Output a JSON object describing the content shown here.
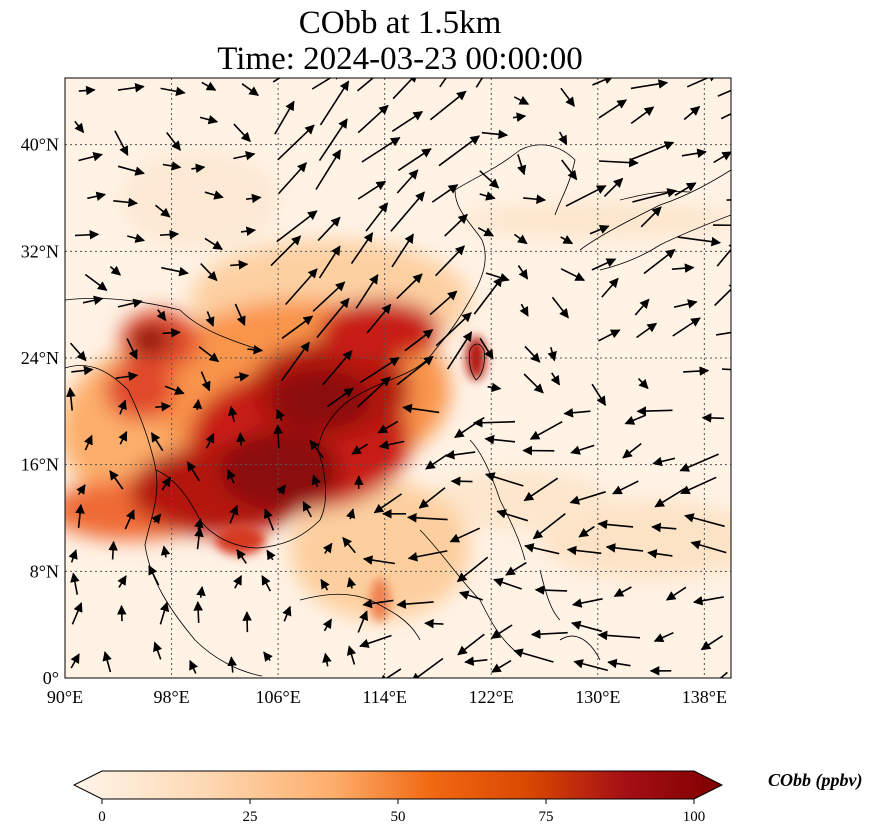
{
  "title_line1": "CObb at 1.5km",
  "title_line2": "Time: 2024-03-23 00:00:00",
  "colorbar_label": "CObb (ppbv)",
  "colorbar_ticks": [
    "0",
    "25",
    "50",
    "75",
    "100"
  ],
  "colorbar_colors": [
    "#fff5eb",
    "#fdd9b4",
    "#fdae6b",
    "#f16913",
    "#d94801",
    "#a50f15",
    "#7f0000"
  ],
  "x_ticks": [
    "90°E",
    "98°E",
    "106°E",
    "114°E",
    "122°E",
    "130°E",
    "138°E"
  ],
  "y_ticks": [
    "40°N",
    "32°N",
    "24°N",
    "16°N",
    "8°N",
    "0°"
  ],
  "map": {
    "lon_range": [
      90,
      140
    ],
    "lat_range": [
      0,
      45
    ],
    "gridlines": "dotted",
    "colormap": "OrRd"
  }
}
